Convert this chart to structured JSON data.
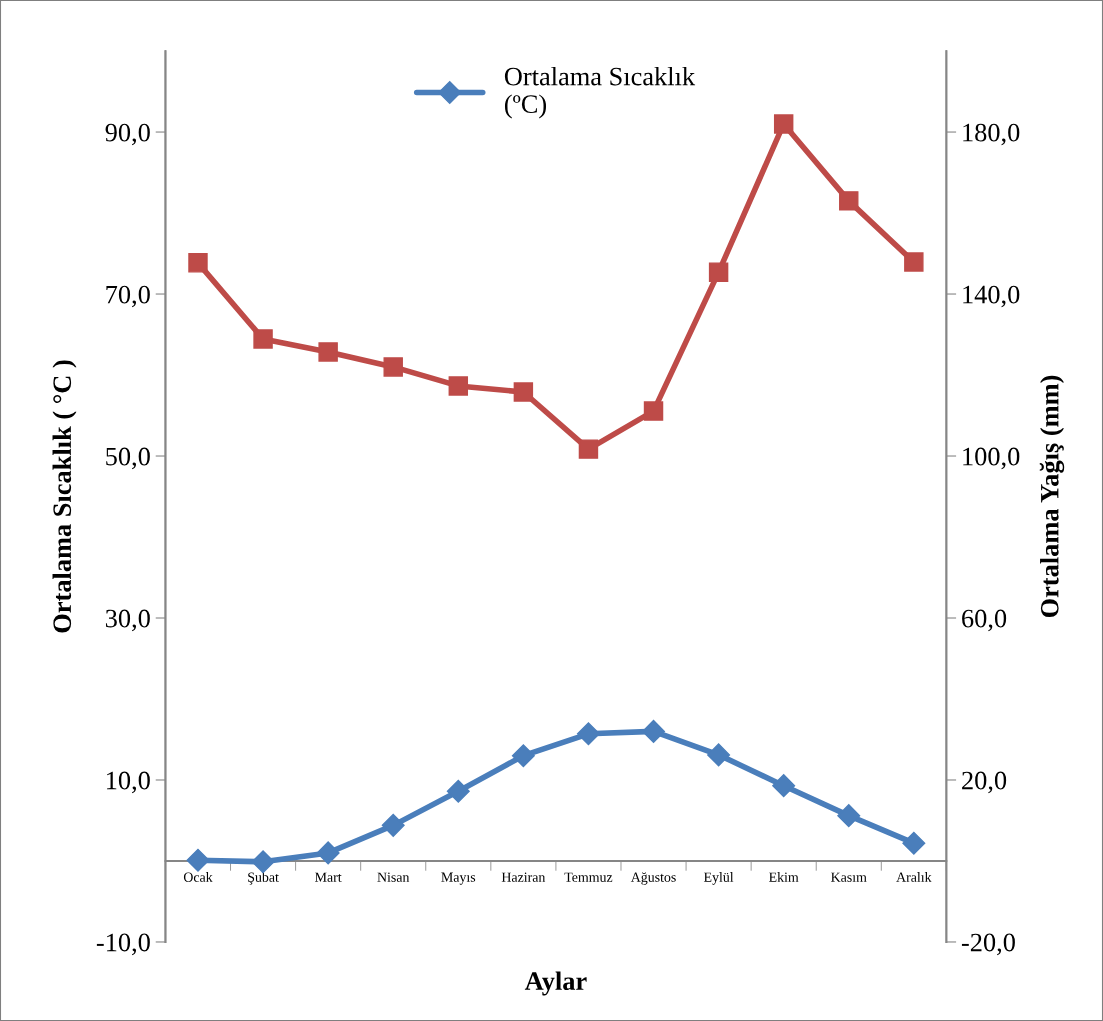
{
  "chart_data": {
    "type": "line",
    "xlabel": "Aylar",
    "ylabel": "Ortalama Sıcaklık ( °C )",
    "y2label": "Ortalama Yağış (mm)",
    "categories": [
      "Ocak",
      "Şubat",
      "Mart",
      "Nisan",
      "Mayıs",
      "Haziran",
      "Temmuz",
      "Ağustos",
      "Eylül",
      "Ekim",
      "Kasım",
      "Aralık"
    ],
    "series": [
      {
        "name": "Ortalama Sıcaklık\n(ºC)",
        "color": "#4a7ebb",
        "marker": "diamond",
        "values": [
          0.1,
          -0.1,
          1.0,
          4.4,
          8.6,
          13.0,
          15.7,
          16.0,
          13.1,
          9.3,
          5.6,
          2.2
        ]
      },
      {
        "color": "#be4b48",
        "marker": "square",
        "axis": "y2",
        "values": [
          147.7,
          128.9,
          125.7,
          122.0,
          117.3,
          115.8,
          101.7,
          111.1,
          145.4,
          182.0,
          163.0,
          147.9
        ]
      }
    ],
    "ylim": [
      -10,
      100
    ],
    "yticks": [
      {
        "value": -10,
        "label": "-10,0"
      },
      {
        "value": 10,
        "label": "10,0"
      },
      {
        "value": 30,
        "label": "30,0"
      },
      {
        "value": 50,
        "label": "50,0"
      },
      {
        "value": 70,
        "label": "70,0"
      },
      {
        "value": 90,
        "label": "90,0"
      }
    ],
    "y2lim": [
      -20,
      200
    ],
    "y2ticks": [
      {
        "value": -20,
        "label": "-20,0"
      },
      {
        "value": 20,
        "label": "20,0"
      },
      {
        "value": 60,
        "label": "60,0"
      },
      {
        "value": 100,
        "label": "100,0"
      },
      {
        "value": 140,
        "label": "140,0"
      },
      {
        "value": 180,
        "label": "180,0"
      }
    ],
    "legend": "top",
    "grid": false,
    "line_style": "solid"
  }
}
